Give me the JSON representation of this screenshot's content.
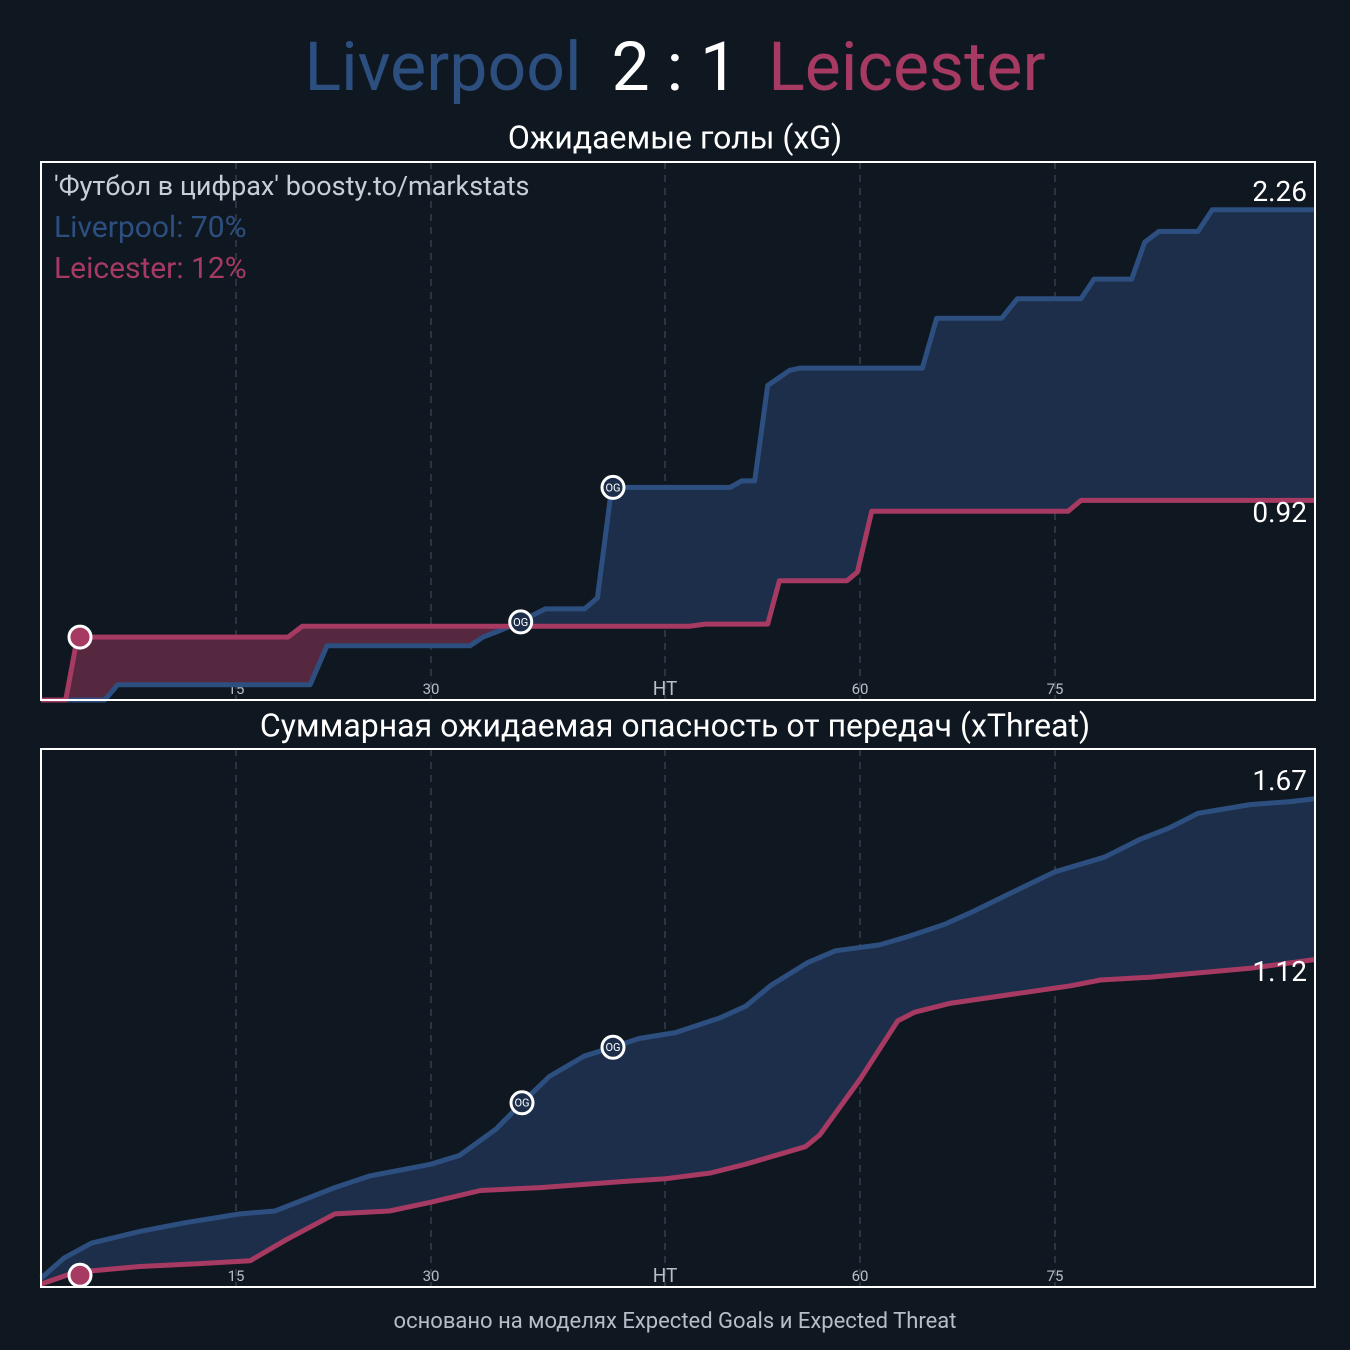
{
  "header": {
    "home": "Liverpool",
    "score": "2 : 1",
    "away": "Leicester"
  },
  "footer": "основано на моделях Expected Goals и Expected Threat",
  "chart_data": [
    {
      "type": "line",
      "title": "Ожидаемые голы (xG)",
      "xlim": [
        0,
        98
      ],
      "ylim": [
        0,
        2.48
      ],
      "xticks": [
        15,
        30,
        {
          "value": 48,
          "label": "HT"
        },
        {
          "value": 63,
          "label": "60"
        },
        {
          "value": 78,
          "label": "75"
        }
      ],
      "grid": true,
      "annotations": [
        {
          "text": "'Футбол в цифрах' boosty.to/markstats",
          "color": "#c9ced6"
        },
        {
          "text": "Liverpool: 70%",
          "color": "#2d4f80"
        },
        {
          "text": "Leicester: 12%",
          "color": "#a63a62"
        }
      ],
      "series": [
        {
          "name": "Liverpool",
          "color": "#2d4f80",
          "fill": "#1c2e49",
          "x": [
            0,
            4.9,
            5.9,
            20.7,
            22,
            33,
            34,
            35.3,
            36.8,
            38.8,
            41.8,
            42.8,
            43.9,
            53,
            53.9,
            54.9,
            55.9,
            57.6,
            58.4,
            67.8,
            68.9,
            73.9,
            75.1,
            80,
            81,
            83.9,
            84.9,
            86,
            89,
            90.1,
            98
          ],
          "values": [
            0,
            0,
            0.07,
            0.07,
            0.25,
            0.25,
            0.29,
            0.32,
            0.36,
            0.42,
            0.42,
            0.47,
            0.98,
            0.98,
            1.01,
            1.01,
            1.45,
            1.52,
            1.53,
            1.53,
            1.76,
            1.76,
            1.85,
            1.85,
            1.94,
            1.94,
            2.11,
            2.16,
            2.16,
            2.26,
            2.26
          ]
        },
        {
          "name": "Leicester",
          "color": "#a63a62",
          "fill": "#55283f",
          "x": [
            0,
            1.9,
            2.8,
            19,
            20.1,
            49.9,
            51.1,
            55.9,
            56.8,
            62,
            62.8,
            63.9,
            79,
            80,
            98
          ],
          "values": [
            0,
            0,
            0.29,
            0.29,
            0.34,
            0.34,
            0.35,
            0.35,
            0.55,
            0.55,
            0.59,
            0.87,
            0.87,
            0.92,
            0.92
          ]
        }
      ],
      "markers": [
        {
          "x": 3,
          "y": 0.29,
          "color": "#a63a62"
        },
        {
          "x": 36.9,
          "y": 0.36,
          "color": "#1c2e49",
          "label": "OG"
        },
        {
          "x": 44,
          "y": 0.98,
          "color": "#1c2e49",
          "label": "OG"
        }
      ]
    },
    {
      "type": "line",
      "title": "Суммарная ожидаемая опасность от передач (xThreat)",
      "xlim": [
        0,
        98
      ],
      "ylim": [
        0,
        1.84
      ],
      "xticks": [
        15,
        30,
        {
          "value": 48,
          "label": "HT"
        },
        {
          "value": 63,
          "label": "60"
        },
        {
          "value": 78,
          "label": "75"
        }
      ],
      "grid": true,
      "series": [
        {
          "name": "Liverpool",
          "color": "#2d4f80",
          "fill": "#1c2e49",
          "x": [
            0,
            1.8,
            3.9,
            7.6,
            11.1,
            15.3,
            18,
            22.6,
            25.3,
            30,
            32.2,
            35,
            37,
            39.1,
            41.8,
            44,
            46,
            48.8,
            52.2,
            54.2,
            56.1,
            59,
            61.1,
            64.5,
            66.8,
            69.5,
            71.5,
            73.8,
            78,
            81.8,
            84.5,
            86.8,
            89,
            93,
            96.1,
            98
          ],
          "values": [
            0.03,
            0.1,
            0.15,
            0.19,
            0.22,
            0.25,
            0.26,
            0.34,
            0.38,
            0.42,
            0.45,
            0.54,
            0.63,
            0.72,
            0.79,
            0.82,
            0.85,
            0.87,
            0.92,
            0.96,
            1.03,
            1.11,
            1.15,
            1.17,
            1.2,
            1.24,
            1.28,
            1.33,
            1.42,
            1.47,
            1.53,
            1.57,
            1.62,
            1.65,
            1.66,
            1.67
          ]
        },
        {
          "name": "Leicester",
          "color": "#a63a62",
          "fill": "#55283f",
          "x": [
            0,
            2.6,
            7.6,
            12.2,
            16.1,
            18.8,
            22.6,
            26.8,
            30,
            33.8,
            38.4,
            44.5,
            48,
            51.5,
            54.2,
            58.8,
            59.9,
            63,
            65.9,
            67.2,
            69.9,
            73,
            79.2,
            81.5,
            85.4,
            93,
            98
          ],
          "values": [
            0.01,
            0.05,
            0.07,
            0.08,
            0.09,
            0.16,
            0.25,
            0.26,
            0.29,
            0.33,
            0.34,
            0.36,
            0.37,
            0.39,
            0.42,
            0.48,
            0.52,
            0.71,
            0.91,
            0.94,
            0.97,
            0.99,
            1.03,
            1.05,
            1.06,
            1.09,
            1.12
          ]
        }
      ],
      "markers": [
        {
          "x": 3,
          "y": 0.04,
          "color": "#a63a62"
        },
        {
          "x": 37,
          "y": 0.63,
          "color": "#1c2e49",
          "label": "OG"
        },
        {
          "x": 44,
          "y": 0.82,
          "color": "#1c2e49",
          "label": "OG"
        }
      ]
    }
  ]
}
